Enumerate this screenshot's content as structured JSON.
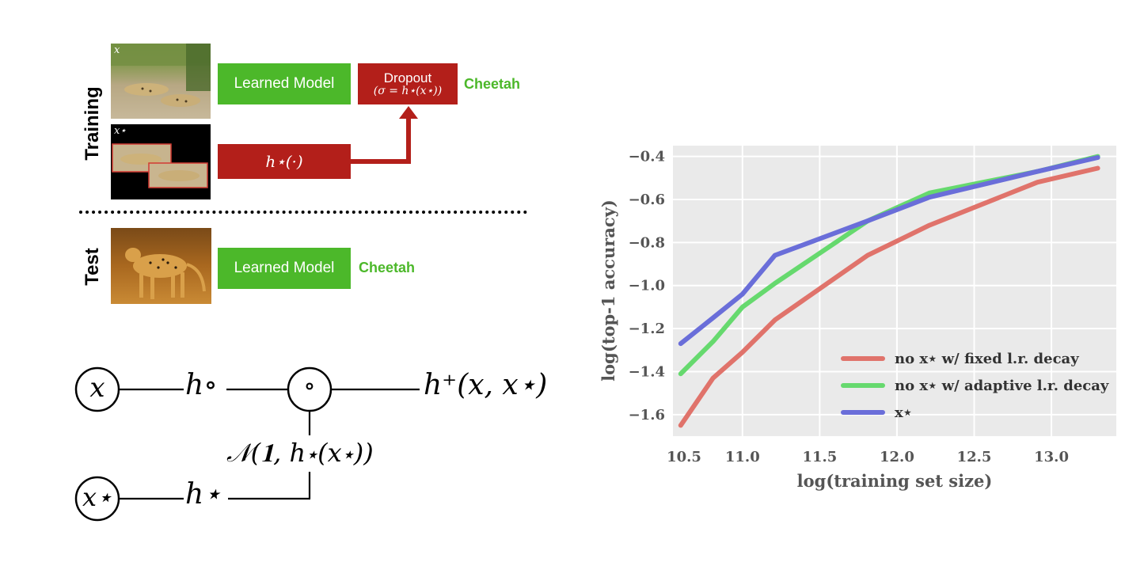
{
  "training": {
    "side_label": "Training",
    "img_x_label": "x",
    "img_xstar_label": "x⋆",
    "learned_model_label": "Learned Model",
    "dropout_title": "Dropout",
    "dropout_formula": "(σ = h⋆(x⋆))",
    "hstar_box_label": "h⋆(·)",
    "output_label": "Cheetah"
  },
  "test": {
    "side_label": "Test",
    "learned_model_label": "Learned Model",
    "output_label": "Cheetah"
  },
  "graph": {
    "node_x": "x",
    "node_xstar": "x⋆",
    "node_op": "∘",
    "h_circ": "h∘",
    "h_star": "h⋆",
    "h_plus": "h⁺(x, x⋆)",
    "noise": "𝒩(𝟏, h⋆(x⋆))"
  },
  "colors": {
    "green": "#4cb82a",
    "red": "#b31f1a",
    "chart_bg": "#eaeaea",
    "series_red": "#e0736b",
    "series_green": "#66d96e",
    "series_blue": "#6a6ed9"
  },
  "chart_data": {
    "type": "line",
    "title": "",
    "xlabel": "log(training set size)",
    "ylabel": "log(top-1 accuracy)",
    "xlim": [
      10.55,
      13.42
    ],
    "ylim": [
      -1.7,
      -0.35
    ],
    "xticks": [
      "10.5",
      "11.0",
      "11.5",
      "12.0",
      "12.5",
      "13.0"
    ],
    "xtick_values": [
      10.5,
      11.0,
      11.5,
      12.0,
      12.5,
      13.0
    ],
    "yticks": [
      "−0.4",
      "−0.6",
      "−0.8",
      "−1.0",
      "−1.2",
      "−1.4",
      "−1.6"
    ],
    "ytick_values": [
      -0.4,
      -0.6,
      -0.8,
      -1.0,
      -1.2,
      -1.4,
      -1.6
    ],
    "grid": true,
    "legend_position": "bottom-right",
    "series": [
      {
        "name": "no x⋆ w/ fixed l.r. decay",
        "color": "#e0736b",
        "x": [
          10.6,
          10.81,
          11.0,
          11.21,
          11.81,
          12.21,
          12.91,
          13.3
        ],
        "y": [
          -1.65,
          -1.43,
          -1.31,
          -1.16,
          -0.86,
          -0.72,
          -0.52,
          -0.455
        ]
      },
      {
        "name": "no x⋆ w/ adaptive l.r. decay",
        "color": "#66d96e",
        "x": [
          10.6,
          10.81,
          11.0,
          11.21,
          11.81,
          12.21,
          12.91,
          13.3
        ],
        "y": [
          -1.41,
          -1.26,
          -1.1,
          -0.99,
          -0.7,
          -0.57,
          -0.47,
          -0.4
        ]
      },
      {
        "name": "x⋆",
        "color": "#6a6ed9",
        "x": [
          10.6,
          10.81,
          11.0,
          11.21,
          11.81,
          12.21,
          12.91,
          13.3
        ],
        "y": [
          -1.27,
          -1.15,
          -1.04,
          -0.86,
          -0.7,
          -0.59,
          -0.47,
          -0.405
        ]
      }
    ]
  }
}
